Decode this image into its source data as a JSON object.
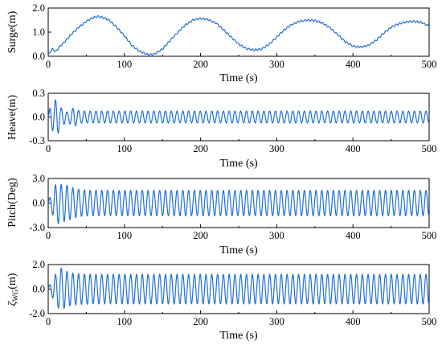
{
  "chart_data": [
    {
      "type": "line",
      "title": "",
      "xlabel": "Time (s)",
      "ylabel": "Surge(m)",
      "xlim": [
        0,
        500
      ],
      "ylim": [
        0.0,
        2.0
      ],
      "xticks": [
        "0",
        "100",
        "200",
        "300",
        "400",
        "500"
      ],
      "yticks": [
        "0.0",
        "1.0",
        "2.0"
      ],
      "ytick_values": [
        0.0,
        1.0,
        2.0
      ],
      "series": [
        {
          "x": [
            0,
            5,
            10,
            15,
            20,
            30,
            40,
            50,
            60,
            65,
            70,
            80,
            90,
            100,
            110,
            120,
            130,
            135,
            140,
            150,
            160,
            170,
            180,
            190,
            200,
            205,
            210,
            220,
            230,
            240,
            250,
            260,
            270,
            280,
            290,
            300,
            310,
            320,
            330,
            340,
            350,
            360,
            370,
            380,
            390,
            400,
            410,
            420,
            430,
            440,
            450,
            460,
            470,
            480,
            490,
            500
          ],
          "values": [
            0.05,
            0.3,
            0.2,
            0.4,
            0.55,
            0.9,
            1.2,
            1.45,
            1.62,
            1.65,
            1.62,
            1.5,
            1.2,
            0.85,
            0.45,
            0.2,
            0.08,
            0.07,
            0.1,
            0.3,
            0.65,
            1.0,
            1.3,
            1.5,
            1.57,
            1.55,
            1.52,
            1.38,
            1.1,
            0.8,
            0.5,
            0.32,
            0.26,
            0.3,
            0.5,
            0.8,
            1.1,
            1.32,
            1.45,
            1.5,
            1.48,
            1.38,
            1.18,
            0.9,
            0.6,
            0.42,
            0.38,
            0.45,
            0.65,
            0.95,
            1.2,
            1.35,
            1.42,
            1.45,
            1.4,
            1.25
          ]
        }
      ],
      "wave_period": 4.6
    },
    {
      "type": "line",
      "title": "",
      "xlabel": "Time (s)",
      "ylabel": "Heave(m)",
      "xlim": [
        0,
        500
      ],
      "ylim": [
        -0.3,
        0.3
      ],
      "xticks": [
        "0",
        "100",
        "200",
        "300",
        "400",
        "500"
      ],
      "yticks": [
        "-0.3",
        "0.0",
        "0.3"
      ],
      "ytick_values": [
        -0.3,
        0.0,
        0.3
      ],
      "series": [
        {
          "x": [
            0,
            3,
            8,
            12,
            16,
            20,
            25,
            30,
            35,
            40,
            50,
            60,
            80,
            500
          ],
          "envelope": [
            0.03,
            0.14,
            0.2,
            0.24,
            0.12,
            0.1,
            0.06,
            0.1,
            0.12,
            0.08,
            0.075,
            0.075,
            0.075,
            0.075
          ],
          "period": 7.6
        }
      ]
    },
    {
      "type": "line",
      "title": "",
      "xlabel": "Time (s)",
      "ylabel": "Pitch(Deg)",
      "xlim": [
        0,
        500
      ],
      "ylim": [
        -3.0,
        3.0
      ],
      "xticks": [
        "0",
        "100",
        "200",
        "300",
        "400",
        "500"
      ],
      "yticks": [
        "-3.0",
        "0.0",
        "3.0"
      ],
      "ytick_values": [
        -3.0,
        0.0,
        3.0
      ],
      "series": [
        {
          "x": [
            0,
            4,
            8,
            12,
            18,
            22,
            28,
            35,
            45,
            60,
            500
          ],
          "envelope": [
            0.3,
            1.0,
            2.0,
            2.6,
            2.2,
            2.3,
            2.0,
            1.8,
            1.6,
            1.55,
            1.55
          ],
          "period": 7.6
        }
      ]
    },
    {
      "type": "line",
      "title": "",
      "xlabel": "Time (s)",
      "ylabel": "ζWG(m)",
      "ylabel_main": "ζ",
      "ylabel_sub": "WG",
      "ylabel_unit": "(m)",
      "xlim": [
        0,
        500
      ],
      "ylim": [
        -2.0,
        2.0
      ],
      "xticks": [
        "0",
        "100",
        "200",
        "300",
        "400",
        "500"
      ],
      "yticks": [
        "-2.0",
        "0.0",
        "2.0"
      ],
      "ytick_values": [
        -2.0,
        0.0,
        2.0
      ],
      "series": [
        {
          "x": [
            0,
            4,
            8,
            12,
            18,
            22,
            26,
            32,
            40,
            60,
            500
          ],
          "envelope": [
            0.2,
            0.5,
            1.0,
            1.5,
            1.75,
            1.5,
            1.4,
            1.3,
            1.25,
            1.2,
            1.2
          ],
          "period": 7.6
        }
      ]
    }
  ]
}
